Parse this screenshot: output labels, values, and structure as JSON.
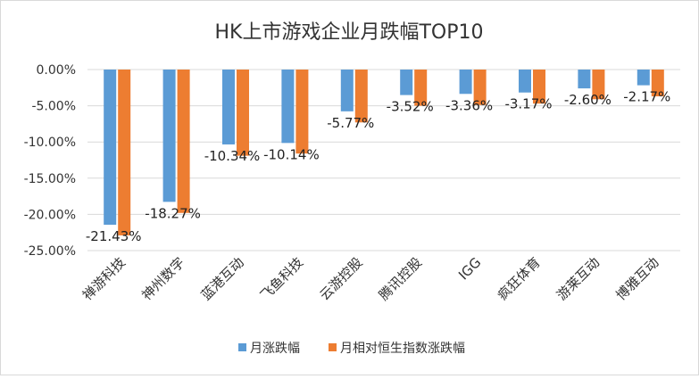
{
  "chart_data": {
    "type": "bar",
    "title": "HK上市游戏企业月跌幅TOP10",
    "categories": [
      "禅游科技",
      "神州数字",
      "蓝港互动",
      "飞鱼科技",
      "云游控股",
      "腾讯控股",
      "IGG",
      "疯狂体育",
      "游莱互动",
      "博雅互动"
    ],
    "series": [
      {
        "name": "月涨跌幅",
        "color": "#5b9bd5",
        "values": [
          -21.43,
          -18.27,
          -10.34,
          -10.14,
          -5.77,
          -3.52,
          -3.36,
          -3.17,
          -2.6,
          -2.17
        ],
        "labels": [
          "-21.43%",
          "-18.27%",
          "-10.34%",
          "-10.14%",
          "-5.77%",
          "-3.52%",
          "-3.36%",
          "-3.17%",
          "-2.60%",
          "-2.17%"
        ]
      },
      {
        "name": "月相对恒生指数涨跌幅",
        "color": "#ed7d31",
        "values": [
          -22.9,
          -19.8,
          -11.9,
          -11.6,
          -7.3,
          -5.0,
          -4.9,
          -4.7,
          -4.1,
          -3.7
        ]
      }
    ],
    "yticks": [
      "0.00%",
      "-5.00%",
      "-10.00%",
      "-15.00%",
      "-20.00%",
      "-25.00%"
    ],
    "ylim": [
      -25,
      0
    ],
    "grid": true,
    "legend": "bottom"
  }
}
